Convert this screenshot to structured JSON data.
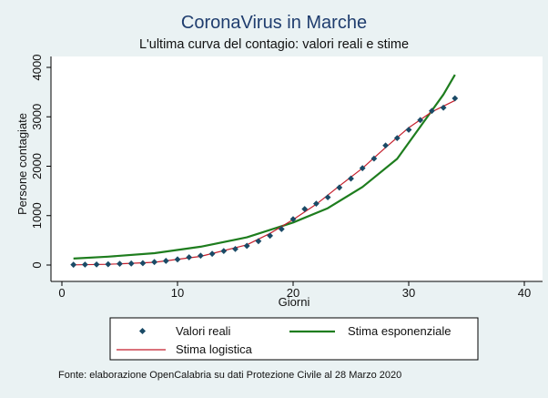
{
  "chart_data": {
    "type": "scatter",
    "title": "CoronaVirus in Marche",
    "subtitle": "L'ultima curva del contagio: valori reali e stime",
    "xlabel": "Giorni",
    "ylabel": "Persone contagiate",
    "xlim": [
      0,
      40
    ],
    "ylim": [
      0,
      4000
    ],
    "x_ticks": [
      0,
      10,
      20,
      30,
      40
    ],
    "y_ticks": [
      0,
      1000,
      2000,
      3000,
      4000
    ],
    "grid": false,
    "legend_position": "bottom",
    "series": [
      {
        "name": "Valori reali",
        "kind": "markers",
        "color": "#1a4a66",
        "x": [
          1,
          2,
          3,
          4,
          5,
          6,
          7,
          8,
          9,
          10,
          11,
          12,
          13,
          14,
          15,
          16,
          17,
          18,
          19,
          20,
          21,
          22,
          23,
          24,
          25,
          26,
          27,
          28,
          29,
          30,
          31,
          32,
          33,
          34
        ],
        "y": [
          6,
          9,
          11,
          16,
          25,
          31,
          38,
          61,
          84,
          114,
          157,
          189,
          227,
          284,
          325,
          388,
          483,
          593,
          728,
          928,
          1133,
          1242,
          1371,
          1568,
          1750,
          1960,
          2154,
          2419,
          2569,
          2738,
          2934,
          3120,
          3184,
          3373
        ]
      },
      {
        "name": "Stima esponenziale",
        "kind": "line",
        "color": "#1e7d1e",
        "x": [
          1,
          4,
          8,
          12,
          16,
          20,
          23,
          26,
          29,
          31,
          33,
          34
        ],
        "y": [
          130,
          170,
          240,
          370,
          560,
          860,
          1150,
          1580,
          2150,
          2800,
          3450,
          3850
        ]
      },
      {
        "name": "Stima logistica",
        "kind": "line",
        "color": "#c41f2c",
        "x": [
          1,
          4,
          8,
          12,
          16,
          18,
          20,
          22,
          24,
          26,
          28,
          30,
          32,
          34
        ],
        "y": [
          4,
          15,
          55,
          175,
          410,
          640,
          920,
          1230,
          1600,
          1960,
          2380,
          2780,
          3100,
          3330
        ]
      }
    ],
    "source_note": "Fonte: elaborazione OpenCalabria su dati Protezione Civile al 28 Marzo 2020"
  },
  "colors": {
    "background": "#eaf2f3",
    "plot_background": "#ffffff",
    "title": "#1f3d6e",
    "axis": "#000000"
  }
}
